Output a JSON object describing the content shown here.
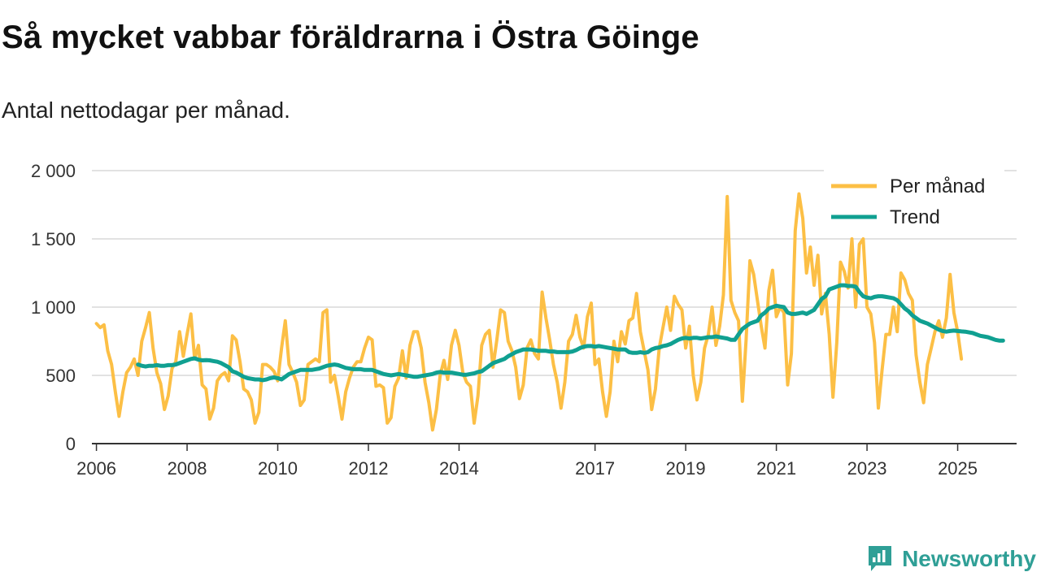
{
  "title": "Så mycket vabbar föräldrarna i Östra Göinge",
  "subtitle": "Antal nettodagar per månad.",
  "brand": {
    "name": "Newsworthy",
    "icon": "newsworthy-logo-icon"
  },
  "colors": {
    "monthly": "#fcbf45",
    "trend": "#10a091",
    "grid": "#d9d9d9",
    "axis": "#333333"
  },
  "chart_data": {
    "type": "line",
    "title": "Så mycket vabbar föräldrarna i Östra Göinge",
    "subtitle": "Antal nettodagar per månad.",
    "xlabel": "",
    "ylabel": "",
    "ylim": [
      0,
      2000
    ],
    "xlim": [
      2005.9,
      2026.3
    ],
    "yticks": [
      0,
      500,
      1000,
      1500,
      2000
    ],
    "ytick_labels": [
      "0",
      "500",
      "1 000",
      "1 500",
      "2 000"
    ],
    "xticks": [
      2006,
      2008,
      2010,
      2012,
      2014,
      2017,
      2019,
      2021,
      2023,
      2025
    ],
    "xtick_labels": [
      "2006",
      "2008",
      "2010",
      "2012",
      "2014",
      "2017",
      "2019",
      "2021",
      "2023",
      "2025"
    ],
    "grid": true,
    "legend_position": "top-right",
    "series": [
      {
        "name": "Per månad",
        "x_start": 2006.0,
        "x_step": 0.08333,
        "values": [
          880,
          850,
          870,
          680,
          580,
          380,
          200,
          380,
          520,
          560,
          620,
          500,
          750,
          850,
          960,
          700,
          520,
          440,
          250,
          350,
          550,
          600,
          820,
          640,
          800,
          950,
          620,
          720,
          430,
          400,
          180,
          260,
          460,
          500,
          520,
          460,
          790,
          760,
          600,
          400,
          380,
          320,
          150,
          230,
          580,
          580,
          560,
          530,
          460,
          700,
          900,
          580,
          520,
          450,
          280,
          320,
          580,
          600,
          620,
          600,
          960,
          980,
          450,
          500,
          350,
          180,
          380,
          480,
          560,
          600,
          600,
          700,
          780,
          760,
          420,
          430,
          410,
          150,
          190,
          420,
          480,
          680,
          480,
          720,
          820,
          820,
          700,
          450,
          300,
          100,
          250,
          500,
          610,
          470,
          720,
          830,
          720,
          520,
          450,
          420,
          150,
          350,
          720,
          800,
          830,
          560,
          760,
          980,
          960,
          750,
          680,
          560,
          330,
          430,
          700,
          760,
          660,
          620,
          1110,
          920,
          760,
          580,
          450,
          260,
          450,
          750,
          800,
          940,
          780,
          700,
          930,
          1030,
          580,
          620,
          380,
          200,
          380,
          750,
          600,
          820,
          730,
          900,
          920,
          1100,
          820,
          680,
          540,
          250,
          400,
          700,
          850,
          1000,
          830,
          1080,
          1020,
          980,
          700,
          860,
          500,
          320,
          450,
          700,
          800,
          1000,
          720,
          860,
          1090,
          1810,
          1050,
          960,
          900,
          310,
          760,
          1340,
          1240,
          1050,
          860,
          700,
          1120,
          1270,
          930,
          1000,
          960,
          430,
          660,
          1560,
          1830,
          1650,
          1250,
          1440,
          1160,
          1380,
          950,
          1100,
          800,
          340,
          740,
          1330,
          1260,
          1140,
          1500,
          1000,
          1460,
          1500,
          1000,
          950,
          740,
          260,
          540,
          800,
          800,
          1000,
          820,
          1250,
          1200,
          1100,
          1050,
          650,
          450,
          300,
          580,
          700,
          820,
          900,
          780,
          920,
          1240,
          960,
          820,
          620
        ]
      },
      {
        "name": "Trend",
        "x_start": 2006.917,
        "x_step": 0.08333,
        "values": [
          580,
          570,
          565,
          570,
          570,
          575,
          570,
          570,
          575,
          575,
          580,
          590,
          600,
          610,
          620,
          625,
          615,
          610,
          612,
          610,
          605,
          600,
          590,
          575,
          560,
          530,
          520,
          505,
          490,
          480,
          475,
          470,
          470,
          465,
          470,
          480,
          485,
          480,
          470,
          490,
          510,
          520,
          530,
          540,
          540,
          540,
          540,
          545,
          550,
          560,
          570,
          575,
          580,
          575,
          565,
          555,
          550,
          545,
          545,
          545,
          540,
          540,
          540,
          530,
          520,
          510,
          505,
          500,
          505,
          510,
          505,
          500,
          495,
          490,
          490,
          495,
          500,
          505,
          510,
          520,
          525,
          520,
          520,
          520,
          515,
          510,
          505,
          505,
          510,
          515,
          525,
          530,
          550,
          570,
          590,
          600,
          610,
          620,
          640,
          655,
          670,
          680,
          690,
          690,
          690,
          685,
          680,
          680,
          680,
          675,
          675,
          670,
          670,
          670,
          670,
          675,
          685,
          700,
          710,
          715,
          715,
          710,
          715,
          710,
          705,
          700,
          695,
          690,
          690,
          690,
          670,
          665,
          665,
          670,
          665,
          670,
          690,
          700,
          705,
          715,
          720,
          730,
          745,
          760,
          770,
          775,
          770,
          775,
          775,
          770,
          775,
          780,
          780,
          785,
          780,
          775,
          770,
          760,
          760,
          800,
          840,
          860,
          880,
          890,
          900,
          940,
          960,
          990,
          1000,
          1010,
          1005,
          1000,
          960,
          950,
          950,
          955,
          960,
          950,
          965,
          980,
          1020,
          1060,
          1080,
          1130,
          1140,
          1150,
          1160,
          1160,
          1155,
          1155,
          1150,
          1110,
          1080,
          1070,
          1065,
          1075,
          1080,
          1080,
          1075,
          1070,
          1065,
          1050,
          1020,
          990,
          970,
          940,
          920,
          900,
          890,
          880,
          865,
          850,
          835,
          825,
          820,
          825,
          828,
          825,
          822,
          820,
          815,
          810,
          800,
          790,
          785,
          780,
          770,
          760,
          755,
          755
        ]
      }
    ]
  }
}
